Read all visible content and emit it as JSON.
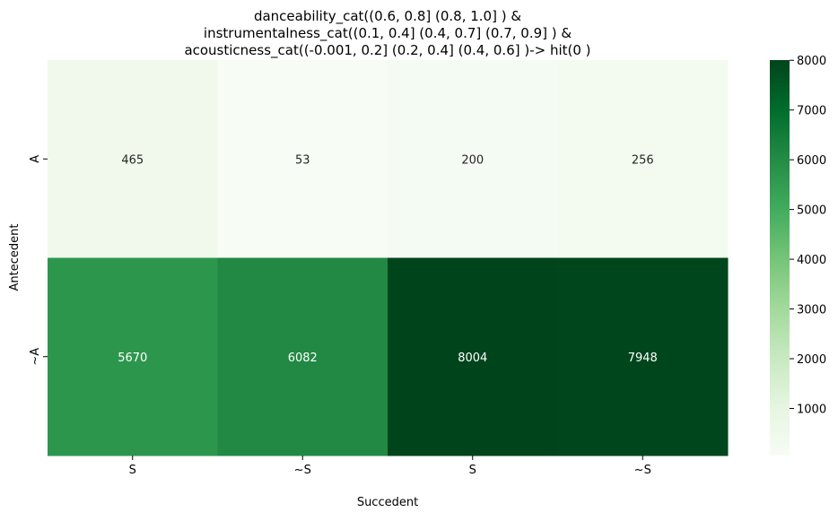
{
  "chart_data": {
    "type": "heatmap",
    "title_lines": [
      "danceability_cat((0.6, 0.8] (0.8, 1.0] ) &",
      "instrumentalness_cat((0.1, 0.4] (0.4, 0.7] (0.7, 0.9] ) &",
      "acousticness_cat((-0.001, 0.2] (0.2, 0.4] (0.4, 0.6] )-> hit(0 )"
    ],
    "xlabel": "Succedent",
    "ylabel": "Antecedent",
    "x_categories": [
      "S",
      "~S",
      "S",
      "~S"
    ],
    "y_categories": [
      "A",
      "~A"
    ],
    "values": [
      [
        465,
        53,
        200,
        256
      ],
      [
        5670,
        6082,
        8004,
        7948
      ]
    ],
    "colorbar": {
      "colormap": "Greens",
      "vmin": 53,
      "vmax": 8004,
      "ticks": [
        1000,
        2000,
        3000,
        4000,
        5000,
        6000,
        7000,
        8000
      ]
    }
  }
}
